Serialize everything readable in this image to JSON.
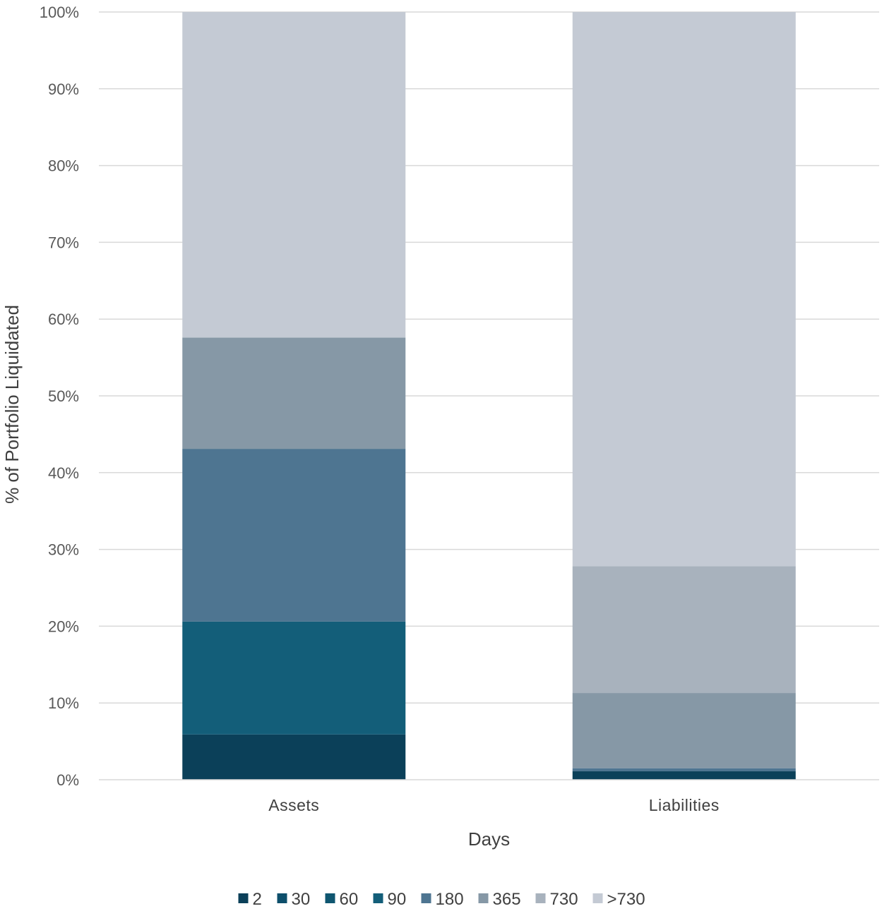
{
  "chart_data": {
    "type": "bar",
    "stacked": true,
    "categories": [
      "Assets",
      "Liabilities"
    ],
    "xlabel": "Days",
    "ylabel": "% of Portfolio Liquidated",
    "ylim": [
      0,
      100
    ],
    "yticks": [
      "0%",
      "10%",
      "20%",
      "30%",
      "40%",
      "50%",
      "60%",
      "70%",
      "80%",
      "90%",
      "100%"
    ],
    "grid": true,
    "legend_position": "bottom",
    "series": [
      {
        "name": "2",
        "color": "#0b4059",
        "values": [
          5.9,
          1.1
        ]
      },
      {
        "name": "30",
        "color": "#0d4f6b",
        "values": [
          0.0,
          0.0
        ]
      },
      {
        "name": "60",
        "color": "#0f5670",
        "values": [
          0.0,
          0.0
        ]
      },
      {
        "name": "90",
        "color": "#135e79",
        "values": [
          14.7,
          0.0
        ]
      },
      {
        "name": "180",
        "color": "#4e7591",
        "values": [
          22.5,
          0.4
        ]
      },
      {
        "name": "365",
        "color": "#8698a6",
        "values": [
          14.5,
          9.8
        ]
      },
      {
        "name": "730",
        "color": "#a8b2bd",
        "values": [
          0.0,
          16.5
        ]
      },
      {
        "name": ">730",
        "color": "#c4cad4",
        "values": [
          42.4,
          72.2
        ]
      }
    ]
  }
}
